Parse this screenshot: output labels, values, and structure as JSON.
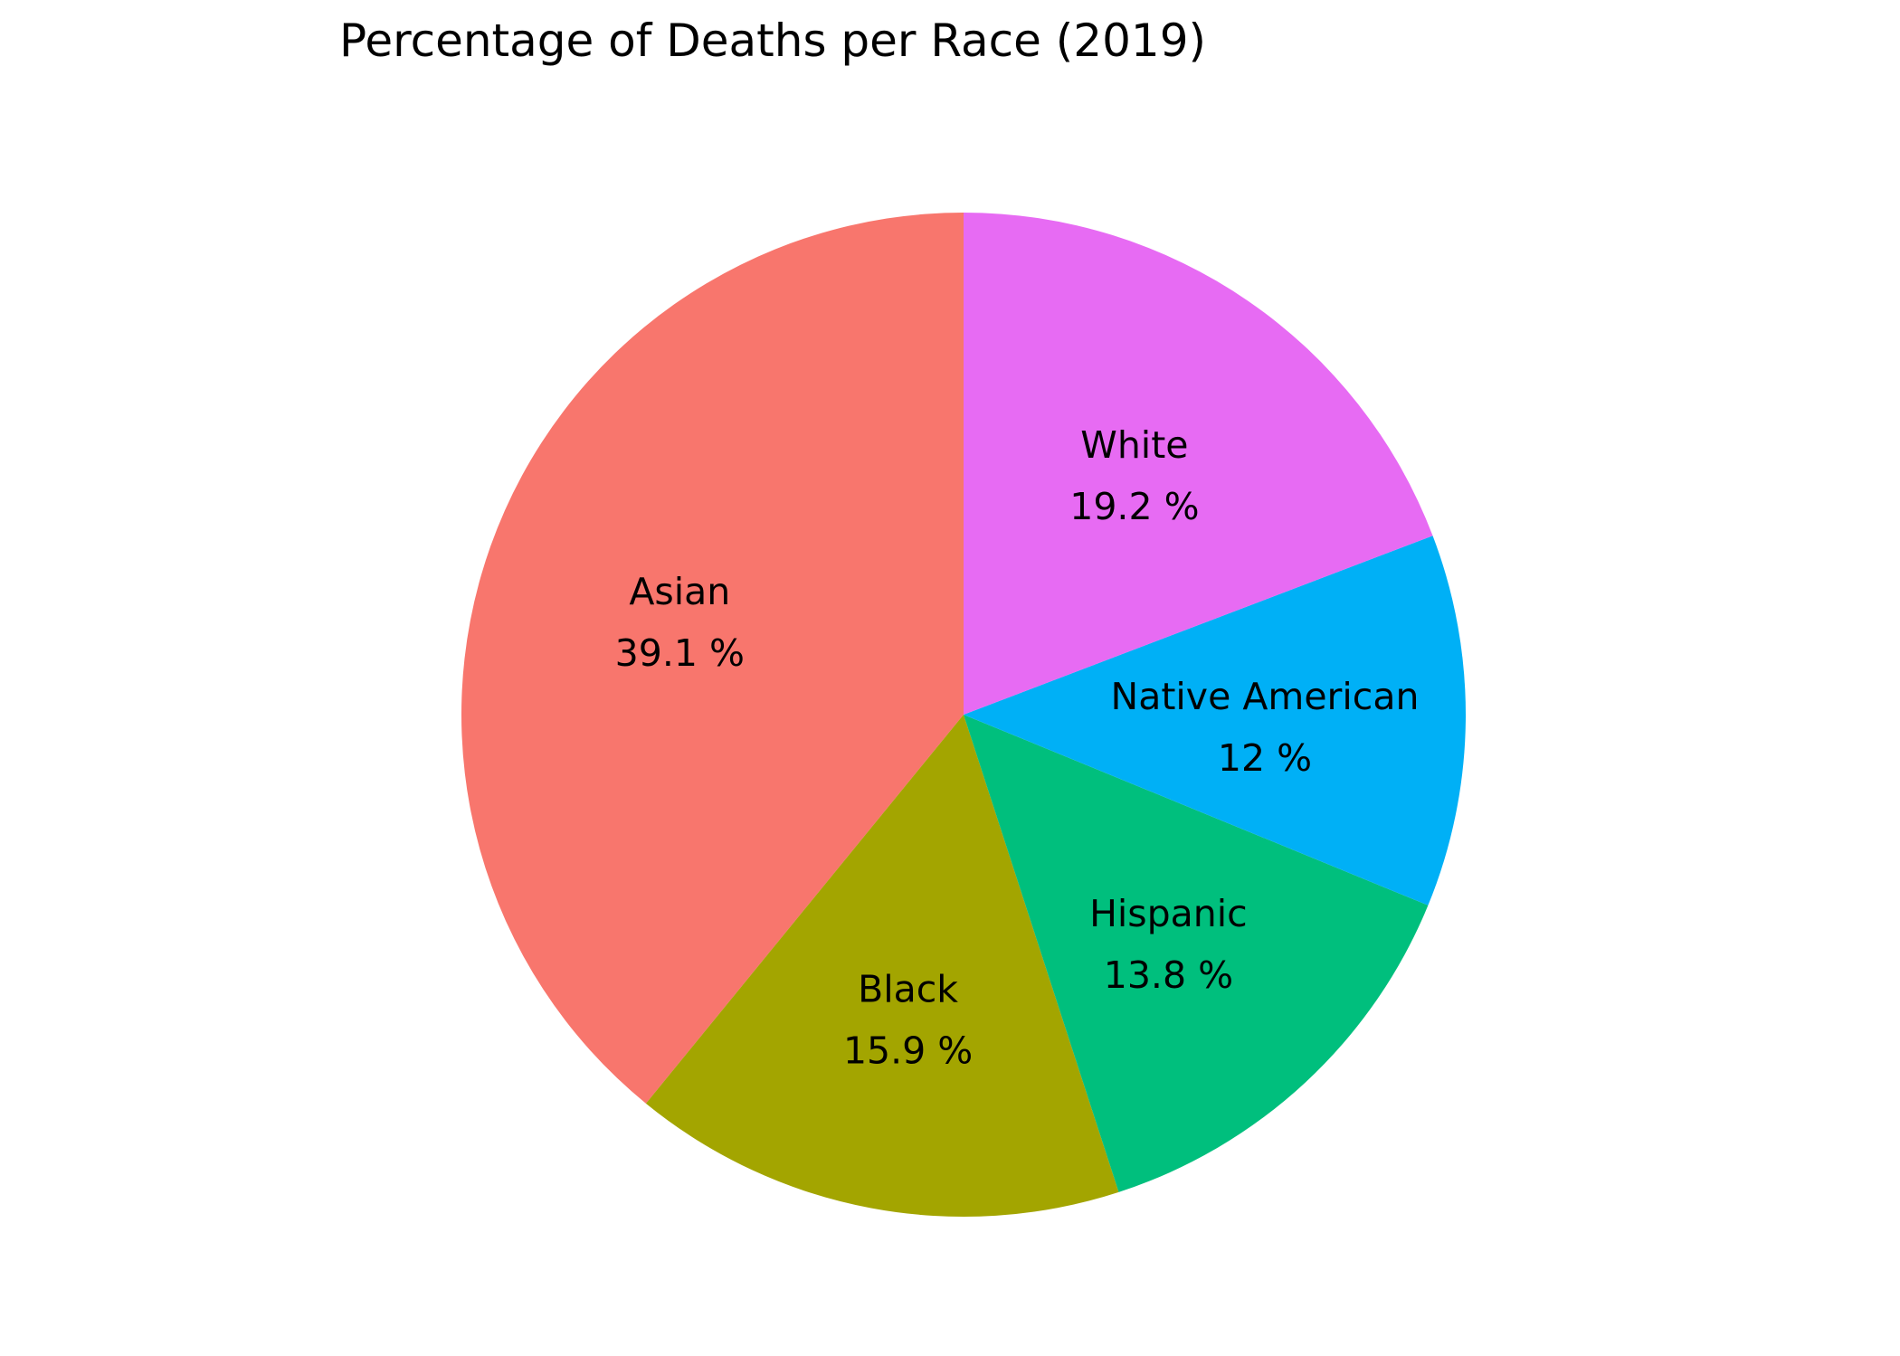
{
  "chart_data": {
    "type": "pie",
    "title": "Percentage of Deaths per Race (2019)",
    "start": "top",
    "direction": "counterclockwise",
    "labels": [
      "Asian",
      "Black",
      "Hispanic",
      "Native American",
      "White"
    ],
    "values": [
      39.1,
      15.9,
      13.8,
      12,
      19.2
    ],
    "value_labels": [
      "39.1 %",
      "15.9 %",
      "13.8 %",
      "12 %",
      "19.2 %"
    ],
    "colors": [
      "#F8766D",
      "#A3A500",
      "#00BF7D",
      "#00B0F6",
      "#E76BF3"
    ],
    "legend": "none"
  }
}
